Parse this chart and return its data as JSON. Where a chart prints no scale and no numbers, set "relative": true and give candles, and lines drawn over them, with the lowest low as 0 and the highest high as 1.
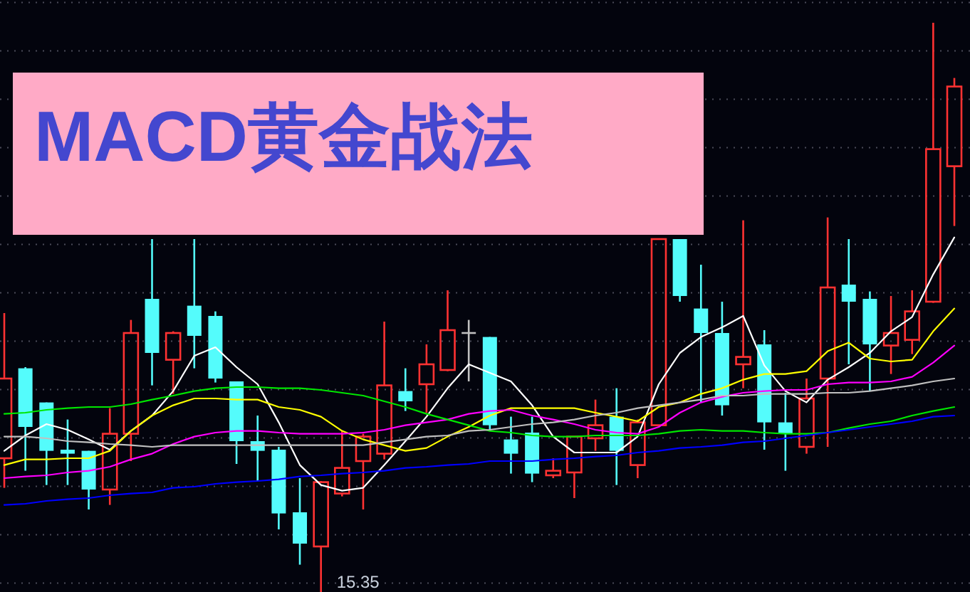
{
  "chart_data": {
    "type": "candlestick",
    "title": "MACD黄金战法",
    "relative": true,
    "grid": true,
    "categories": [
      null,
      null,
      null,
      null,
      null,
      null,
      null,
      null,
      null,
      null,
      null,
      null,
      null,
      null,
      null,
      null,
      null,
      null,
      null,
      null,
      null,
      null,
      null,
      null,
      null,
      null,
      null,
      null,
      null,
      null,
      null,
      null,
      null,
      null,
      null,
      null,
      null,
      null,
      null,
      null,
      null,
      null,
      null,
      null,
      null,
      null
    ],
    "ohlc": [
      [
        0.235,
        0.49,
        0.183,
        0.375
      ],
      [
        0.393,
        0.395,
        0.213,
        0.29
      ],
      [
        0.333,
        0.333,
        0.188,
        0.248
      ],
      [
        0.25,
        0.303,
        0.188,
        0.243
      ],
      [
        0.248,
        0.248,
        0.145,
        0.18
      ],
      [
        0.18,
        0.323,
        0.153,
        0.278
      ],
      [
        0.278,
        0.478,
        0.23,
        0.455
      ],
      [
        0.515,
        0.62,
        0.363,
        0.42
      ],
      [
        0.408,
        0.458,
        0.348,
        0.455
      ],
      [
        0.503,
        0.62,
        0.393,
        0.45
      ],
      [
        0.485,
        0.493,
        0.368,
        0.375
      ],
      [
        0.37,
        0.37,
        0.225,
        0.265
      ],
      [
        0.265,
        0.31,
        0.195,
        0.248
      ],
      [
        0.25,
        0.255,
        0.11,
        0.138
      ],
      [
        0.14,
        0.2,
        0.048,
        0.085
      ],
      [
        0.08,
        0.195,
        0,
        0.193
      ],
      [
        0.173,
        0.283,
        0.168,
        0.218
      ],
      [
        0.23,
        0.278,
        0.145,
        0.273
      ],
      [
        0.243,
        0.475,
        0.233,
        0.363
      ],
      [
        0.353,
        0.393,
        0.318,
        0.335
      ],
      [
        0.365,
        0.435,
        0.315,
        0.4
      ],
      [
        0.39,
        0.53,
        0.388,
        0.46
      ],
      [
        0.455,
        0.478,
        0.37,
        0.455
      ],
      [
        0.448,
        0.448,
        0.283,
        0.293
      ],
      [
        0.268,
        0.308,
        0.208,
        0.243
      ],
      [
        0.28,
        0.308,
        0.193,
        0.208
      ],
      [
        0.205,
        0.235,
        0.2,
        0.213
      ],
      [
        0.21,
        0.273,
        0.165,
        0.273
      ],
      [
        0.27,
        0.338,
        0.248,
        0.293
      ],
      [
        0.308,
        0.358,
        0.188,
        0.248
      ],
      [
        0.223,
        0.303,
        0.2,
        0.298
      ],
      [
        0.293,
        0.62,
        0.293,
        0.62
      ],
      [
        0.62,
        0.62,
        0.51,
        0.52
      ],
      [
        0.498,
        0.575,
        0.333,
        0.455
      ],
      [
        0.455,
        0.51,
        0.31,
        0.328
      ],
      [
        0.4,
        0.653,
        0.358,
        0.413
      ],
      [
        0.435,
        0.46,
        0.25,
        0.298
      ],
      [
        0.298,
        0.35,
        0.213,
        0.278
      ],
      [
        0.255,
        0.375,
        0.243,
        0.34
      ],
      [
        0.375,
        0.658,
        0.255,
        0.535
      ],
      [
        0.54,
        0.62,
        0.4,
        0.51
      ],
      [
        0.515,
        0.528,
        0.353,
        0.435
      ],
      [
        0.433,
        0.52,
        0.383,
        0.455
      ],
      [
        0.443,
        0.53,
        0.418,
        0.493
      ],
      [
        0.51,
        1,
        0.508,
        0.778
      ],
      [
        0.748,
        0.903,
        0.643,
        0.888
      ]
    ],
    "colors": [
      "#ff3232",
      "#54fcfc",
      "#54fcfc",
      "#54fcfc",
      "#54fcfc",
      "#ff3232",
      "#ff3232",
      "#54fcfc",
      "#ff3232",
      "#54fcfc",
      "#54fcfc",
      "#54fcfc",
      "#54fcfc",
      "#54fcfc",
      "#54fcfc",
      "#ff3232",
      "#ff3232",
      "#ff3232",
      "#ff3232",
      "#54fcfc",
      "#ff3232",
      "#ff3232",
      "#c0c0c0",
      "#54fcfc",
      "#54fcfc",
      "#54fcfc",
      "#ff3232",
      "#ff3232",
      "#ff3232",
      "#54fcfc",
      "#ff3232",
      "#ff3232",
      "#54fcfc",
      "#54fcfc",
      "#54fcfc",
      "#ff3232",
      "#54fcfc",
      "#54fcfc",
      "#ff3232",
      "#ff3232",
      "#54fcfc",
      "#54fcfc",
      "#ff3232",
      "#ff3232",
      "#ff3232",
      "#ff3232"
    ],
    "series": [
      {
        "type": "line",
        "color": "#ffffff",
        "values": [
          0.248,
          0.275,
          0.295,
          0.285,
          0.268,
          0.25,
          0.283,
          0.31,
          0.353,
          0.415,
          0.43,
          0.395,
          0.365,
          0.298,
          0.223,
          0.188,
          0.178,
          0.183,
          0.223,
          0.265,
          0.308,
          0.358,
          0.4,
          0.385,
          0.37,
          0.328,
          0.273,
          0.245,
          0.245,
          0.245,
          0.273,
          0.365,
          0.42,
          0.448,
          0.465,
          0.485,
          0.398,
          0.353,
          0.333,
          0.373,
          0.395,
          0.42,
          0.458,
          0.483,
          0.558,
          0.623
        ]
      },
      {
        "type": "line",
        "color": "#ffff00",
        "values": [
          0.223,
          0.233,
          0.233,
          0.235,
          0.235,
          0.248,
          0.283,
          0.31,
          0.328,
          0.34,
          0.34,
          0.338,
          0.338,
          0.325,
          0.32,
          0.308,
          0.283,
          0.268,
          0.258,
          0.248,
          0.253,
          0.273,
          0.29,
          0.31,
          0.323,
          0.323,
          0.323,
          0.323,
          0.315,
          0.308,
          0.3,
          0.325,
          0.333,
          0.348,
          0.358,
          0.373,
          0.383,
          0.383,
          0.388,
          0.423,
          0.438,
          0.41,
          0.405,
          0.408,
          0.458,
          0.498
        ]
      },
      {
        "type": "line",
        "color": "#ff00ff",
        "values": [
          0.2,
          0.203,
          0.205,
          0.21,
          0.213,
          0.22,
          0.233,
          0.243,
          0.26,
          0.273,
          0.28,
          0.283,
          0.283,
          0.28,
          0.278,
          0.278,
          0.278,
          0.28,
          0.285,
          0.293,
          0.298,
          0.303,
          0.313,
          0.318,
          0.32,
          0.31,
          0.303,
          0.295,
          0.285,
          0.28,
          0.278,
          0.29,
          0.315,
          0.333,
          0.343,
          0.35,
          0.353,
          0.355,
          0.355,
          0.365,
          0.368,
          0.368,
          0.37,
          0.378,
          0.403,
          0.433
        ]
      },
      {
        "type": "line",
        "color": "#00e600",
        "values": [
          0.313,
          0.315,
          0.32,
          0.323,
          0.325,
          0.325,
          0.33,
          0.338,
          0.345,
          0.353,
          0.358,
          0.36,
          0.36,
          0.358,
          0.358,
          0.355,
          0.35,
          0.345,
          0.335,
          0.325,
          0.313,
          0.303,
          0.293,
          0.283,
          0.28,
          0.275,
          0.273,
          0.273,
          0.275,
          0.275,
          0.275,
          0.278,
          0.283,
          0.285,
          0.283,
          0.283,
          0.28,
          0.278,
          0.278,
          0.28,
          0.288,
          0.295,
          0.3,
          0.31,
          0.318,
          0.325
        ]
      },
      {
        "type": "line",
        "color": "#c0c0c0",
        "values": [
          0.273,
          0.273,
          0.27,
          0.265,
          0.263,
          0.26,
          0.258,
          0.255,
          0.258,
          0.258,
          0.258,
          0.258,
          0.258,
          0.258,
          0.258,
          0.258,
          0.258,
          0.258,
          0.263,
          0.268,
          0.273,
          0.275,
          0.283,
          0.285,
          0.29,
          0.295,
          0.298,
          0.303,
          0.31,
          0.315,
          0.323,
          0.328,
          0.333,
          0.338,
          0.345,
          0.345,
          0.348,
          0.348,
          0.348,
          0.35,
          0.35,
          0.353,
          0.358,
          0.363,
          0.37,
          0.375
        ]
      },
      {
        "type": "line",
        "color": "#0000ff",
        "values": [
          0.153,
          0.155,
          0.16,
          0.163,
          0.165,
          0.17,
          0.173,
          0.175,
          0.183,
          0.185,
          0.19,
          0.193,
          0.195,
          0.198,
          0.203,
          0.205,
          0.208,
          0.21,
          0.213,
          0.218,
          0.22,
          0.223,
          0.225,
          0.23,
          0.23,
          0.23,
          0.233,
          0.235,
          0.238,
          0.24,
          0.245,
          0.248,
          0.253,
          0.255,
          0.258,
          0.263,
          0.265,
          0.27,
          0.275,
          0.28,
          0.285,
          0.29,
          0.295,
          0.3,
          0.308,
          0.31
        ]
      }
    ],
    "annotations": [
      "15.35"
    ]
  }
}
